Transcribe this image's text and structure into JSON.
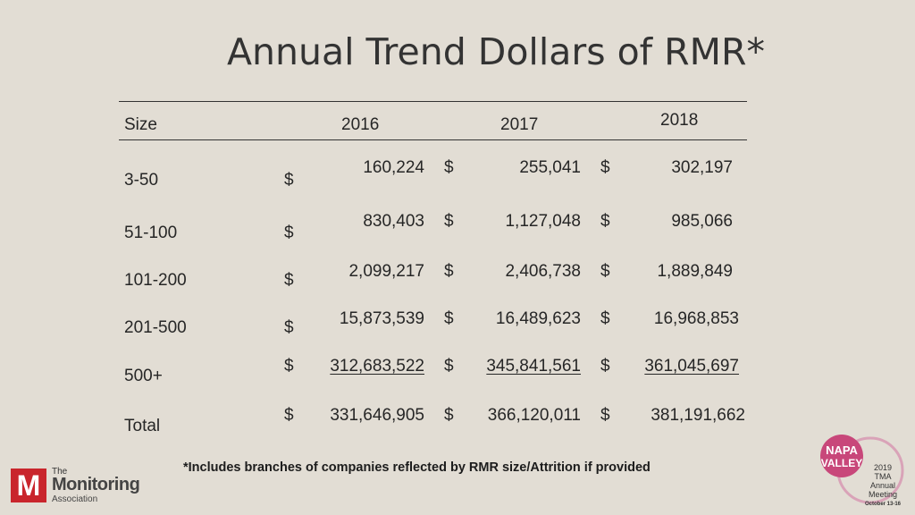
{
  "title": "Annual Trend Dollars of RMR*",
  "header": {
    "size": "Size",
    "y2016": "2016",
    "y2017": "2017",
    "y2018": "2018"
  },
  "currency": "$",
  "rows": [
    {
      "size": "3-50",
      "v2016": "160,224",
      "v2017": "255,041",
      "v2018": "302,197"
    },
    {
      "size": "51-100",
      "v2016": "830,403",
      "v2017": "1,127,048",
      "v2018": "985,066"
    },
    {
      "size": "101-200",
      "v2016": "2,099,217",
      "v2017": "2,406,738",
      "v2018": "1,889,849"
    },
    {
      "size": "201-500",
      "v2016": "15,873,539",
      "v2017": "16,489,623",
      "v2018": "16,968,853"
    },
    {
      "size": "500+",
      "v2016": "312,683,522",
      "v2017": "345,841,561",
      "v2018": "361,045,697"
    },
    {
      "size": "Total",
      "v2016": "331,646,905",
      "v2017": "366,120,011",
      "v2018": "381,191,662"
    }
  ],
  "footnote": "*Includes branches of companies reflected by RMR size/Attrition if provided",
  "logo": {
    "the": "The",
    "name": "Monitoring",
    "assoc": "Association",
    "mark": "M"
  },
  "napa": {
    "line1": "NAPA",
    "line2": "VALLEY",
    "year": "2019",
    "org": "TMA",
    "l3": "Annual",
    "l4": "Meeting",
    "dates": "October 13-16"
  },
  "colors": {
    "background": "#e2ddd4",
    "logo_red": "#c9252c",
    "napa_pink": "#c8477a"
  }
}
